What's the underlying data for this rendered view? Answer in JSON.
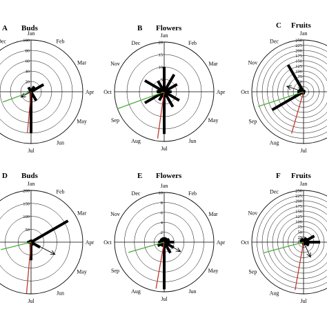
{
  "chart_data": [
    {
      "panel": "A",
      "title": "Buds",
      "type": "circular",
      "months": [
        "Jan",
        "Feb",
        "Mar",
        "Apr",
        "May",
        "Jun",
        "Jul",
        "Aug",
        "Sep",
        "Oct",
        "Nov",
        "Dec"
      ],
      "month_labels_shown": [
        "Jan",
        "Feb",
        "Mar",
        "Apr",
        "May",
        "Jun",
        "Jul",
        "Dec"
      ],
      "rlim": [
        0,
        100
      ],
      "rticks": [
        0,
        20,
        40,
        60,
        80,
        100
      ],
      "values": [
        5,
        12,
        28,
        2,
        2,
        20,
        80,
        3,
        2,
        3,
        3,
        10
      ],
      "mean_vector": {
        "angle_deg": 242,
        "length": 22
      },
      "red_line": {
        "angle_deg": 185,
        "length": 80
      },
      "green_line": {
        "angle_deg": 250,
        "length": 58
      }
    },
    {
      "panel": "B",
      "title": "Flowers",
      "type": "circular",
      "months": [
        "Jan",
        "Feb",
        "Mar",
        "Apr",
        "May",
        "Jun",
        "Jul",
        "Aug",
        "Sep",
        "Oct",
        "Nov",
        "Dec"
      ],
      "month_labels_shown": [
        "Jan",
        "Feb",
        "Mar",
        "Apr",
        "May",
        "Jun",
        "Jul",
        "Aug",
        "Sep",
        "Oct",
        "Nov",
        "Dec"
      ],
      "rlim": [
        0,
        20
      ],
      "rticks": [
        0,
        5,
        10,
        15,
        20
      ],
      "values": [
        10,
        8,
        6,
        3,
        7,
        7,
        17,
        4,
        9,
        3,
        9,
        5
      ],
      "mean_vector": {
        "angle_deg": 280,
        "length": 3
      },
      "red_line": {
        "angle_deg": 188,
        "length": 19
      },
      "green_line": {
        "angle_deg": 250,
        "length": 20
      }
    },
    {
      "panel": "C",
      "title": "Fruits",
      "type": "circular",
      "months": [
        "Jan",
        "Feb",
        "Mar",
        "Apr",
        "May",
        "Jun",
        "Jul",
        "Aug",
        "Sep",
        "Oct",
        "Nov",
        "Dec"
      ],
      "month_labels_shown": [
        "Jan",
        "Feb",
        "Mar",
        "Apr",
        "May",
        "Jun",
        "Jul",
        "Aug",
        "Sep",
        "Oct",
        "Nov",
        "Dec"
      ],
      "rlim": [
        0,
        250
      ],
      "rticks": [
        0,
        25,
        50,
        75,
        100,
        125,
        150,
        175,
        200,
        225,
        250
      ],
      "values": [
        10,
        10,
        5,
        3,
        3,
        8,
        12,
        15,
        175,
        30,
        25,
        150
      ],
      "mean_vector": {
        "angle_deg": 288,
        "length": 85
      },
      "red_line": {
        "angle_deg": 196,
        "length": 210
      },
      "green_line": {
        "angle_deg": 252,
        "length": 230
      }
    },
    {
      "panel": "D",
      "title": "Buds",
      "type": "circular",
      "months": [
        "Jan",
        "Feb",
        "Mar",
        "Apr",
        "May",
        "Jun",
        "Jul",
        "Aug",
        "Sep",
        "Oct",
        "Nov",
        "Dec"
      ],
      "month_labels_shown": [
        "Jan",
        "Feb",
        "Mar",
        "Apr",
        "May",
        "Jun",
        "Jul"
      ],
      "rlim": [
        0,
        200
      ],
      "rticks": [
        0,
        50,
        100,
        150,
        200
      ],
      "values": [
        5,
        10,
        165,
        5,
        40,
        15,
        70,
        3,
        3,
        15,
        5,
        10
      ],
      "mean_vector": {
        "angle_deg": 117,
        "length": 104
      },
      "red_line": {
        "angle_deg": 185,
        "length": 200
      },
      "green_line": {
        "angle_deg": 256,
        "length": 120
      }
    },
    {
      "panel": "E",
      "title": "Flowers",
      "type": "circular",
      "months": [
        "Jan",
        "Feb",
        "Mar",
        "Apr",
        "May",
        "Jun",
        "Jul",
        "Aug",
        "Sep",
        "Oct",
        "Nov",
        "Dec"
      ],
      "month_labels_shown": [
        "Jan",
        "Feb",
        "Mar",
        "Apr",
        "May",
        "Jun",
        "Jul",
        "Aug",
        "Sep",
        "Oct",
        "Nov",
        "Dec"
      ],
      "rlim": [
        0,
        10
      ],
      "rticks": [
        0,
        2,
        4,
        6,
        8,
        10
      ],
      "values": [
        1,
        1,
        1.2,
        2,
        2.2,
        2.5,
        9.5,
        1,
        1.5,
        1.2,
        1,
        1
      ],
      "mean_vector": {
        "angle_deg": 120,
        "length": 3.8
      },
      "red_line": {
        "angle_deg": 190,
        "length": 9.5
      },
      "green_line": {
        "angle_deg": 254,
        "length": 7.5
      }
    },
    {
      "panel": "F",
      "title": "Fruits",
      "type": "circular",
      "months": [
        "Jan",
        "Feb",
        "Mar",
        "Apr",
        "May",
        "Jun",
        "Jul",
        "Aug",
        "Sep",
        "Oct",
        "Nov",
        "Dec"
      ],
      "month_labels_shown": [
        "Jan",
        "Feb",
        "Mar",
        "Apr",
        "May",
        "Jun",
        "Jul",
        "Aug",
        "Sep",
        "Oct",
        "Nov",
        "Dec"
      ],
      "rlim": [
        0,
        250
      ],
      "rticks": [
        0,
        25,
        50,
        75,
        100,
        125,
        150,
        175,
        200,
        225,
        250
      ],
      "values": [
        15,
        25,
        60,
        80,
        30,
        15,
        15,
        5,
        10,
        12,
        20,
        20
      ],
      "mean_vector": {
        "angle_deg": 155,
        "length": 80
      },
      "red_line": {
        "angle_deg": 190,
        "length": 235
      },
      "green_line": {
        "angle_deg": 255,
        "length": 200
      }
    }
  ],
  "colors": {
    "bars": "#000000",
    "red_line": "#c0392b",
    "green_line": "#4cae3a",
    "axes": "#000000"
  }
}
